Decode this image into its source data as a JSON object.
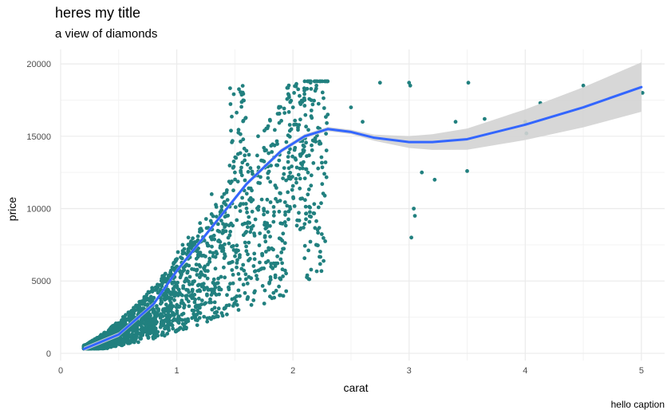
{
  "chart_data": {
    "type": "scatter",
    "title": "heres my title",
    "subtitle": "a view of diamonds",
    "caption": "hello caption",
    "xlabel": "carat",
    "ylabel": "price",
    "xlim": [
      0,
      5.2
    ],
    "ylim": [
      -500,
      21000
    ],
    "x_ticks": [
      0,
      1,
      2,
      3,
      4,
      5
    ],
    "x_tick_labels": [
      "0",
      "1",
      "2",
      "3",
      "4",
      "5"
    ],
    "y_ticks": [
      0,
      5000,
      10000,
      15000,
      20000
    ],
    "y_tick_labels": [
      "0",
      "5000",
      "10000",
      "15000",
      "20000"
    ],
    "grid": true,
    "legend": "none",
    "colors": {
      "points": "#21807F",
      "smooth_line": "#3366FF",
      "ribbon": "#D3D3D3",
      "grid_major": "#EBEBEB",
      "grid_minor": "#F3F3F3"
    },
    "series": [
      {
        "kind": "points",
        "x": [
          0.23,
          0.25,
          0.3,
          0.31,
          0.33,
          0.35,
          0.4,
          0.42,
          0.5,
          0.51,
          0.55,
          0.6,
          0.7,
          0.72,
          0.75,
          0.8,
          0.9,
          0.91,
          1.0,
          1.01,
          1.05,
          1.1,
          1.2,
          1.3,
          1.5,
          1.51,
          1.6,
          1.7,
          2.0,
          2.01,
          2.1,
          2.2,
          2.3,
          2.5,
          2.6,
          2.75,
          3.0,
          3.01,
          3.02,
          3.04,
          3.05,
          3.11,
          3.22,
          3.4,
          3.5,
          3.51,
          3.65,
          4.0,
          4.01,
          4.13,
          4.5,
          5.01
        ],
        "y": [
          340,
          400,
          500,
          560,
          620,
          700,
          800,
          900,
          1200,
          1500,
          1700,
          2000,
          2500,
          3000,
          3300,
          3500,
          4500,
          5000,
          6000,
          7000,
          7500,
          8000,
          9000,
          11000,
          12500,
          13500,
          14000,
          15000,
          17000,
          18000,
          17500,
          18300,
          16500,
          17000,
          16000,
          18700,
          18700,
          18500,
          8000,
          10000,
          9500,
          12500,
          12000,
          16000,
          12600,
          18700,
          16200,
          16000,
          15200,
          17300,
          18500,
          18000
        ]
      },
      {
        "kind": "smooth",
        "x": [
          0.2,
          0.5,
          0.8,
          1.0,
          1.3,
          1.6,
          1.9,
          2.1,
          2.3,
          2.5,
          2.7,
          3.0,
          3.2,
          3.5,
          4.0,
          4.5,
          5.0
        ],
        "y": [
          300,
          1300,
          3400,
          5700,
          8700,
          11700,
          14000,
          15000,
          15500,
          15300,
          14900,
          14600,
          14600,
          14800,
          15800,
          17000,
          18400
        ]
      }
    ]
  }
}
